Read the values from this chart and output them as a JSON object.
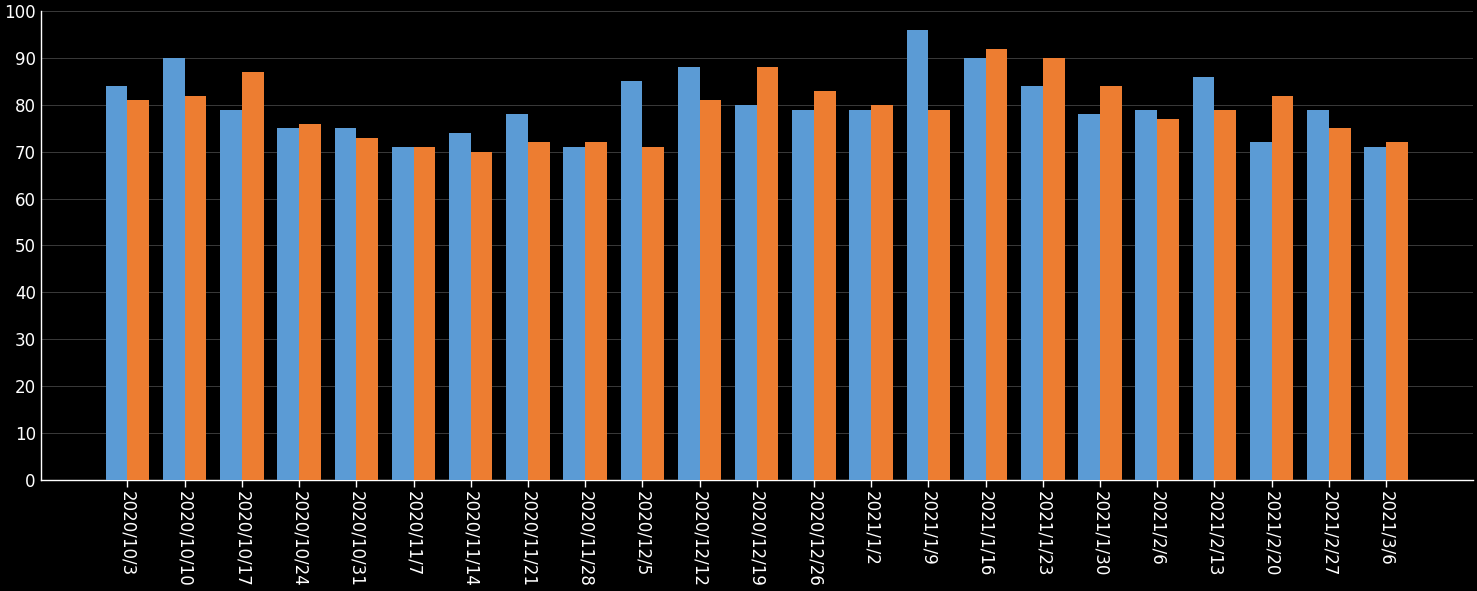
{
  "categories": [
    "2020/10/3",
    "2020/10/10",
    "2020/10/17",
    "2020/10/24",
    "2020/10/31",
    "2020/11/7",
    "2020/11/14",
    "2020/11/21",
    "2020/11/28",
    "2020/12/5",
    "2020/12/12",
    "2020/12/19",
    "2020/12/26",
    "2021/1/2",
    "2021/1/9",
    "2021/1/16",
    "2021/1/23",
    "2021/1/30",
    "2021/2/6",
    "2021/2/13",
    "2021/2/20",
    "2021/2/27",
    "2021/3/6"
  ],
  "blue_values": [
    84,
    90,
    79,
    75,
    75,
    71,
    74,
    78,
    71,
    85,
    88,
    80,
    79,
    79,
    96,
    90,
    84,
    78,
    79,
    86,
    72,
    79,
    71
  ],
  "orange_values": [
    81,
    82,
    87,
    76,
    73,
    71,
    70,
    72,
    72,
    71,
    81,
    88,
    83,
    80,
    79,
    92,
    90,
    84,
    77,
    79,
    82,
    75,
    72
  ],
  "blue_color": "#5B9BD5",
  "orange_color": "#ED7D31",
  "background_color": "#000000",
  "plot_bg_color": "#000000",
  "grid_color": "#3A3A3A",
  "text_color": "#FFFFFF",
  "ylim": [
    0,
    100
  ],
  "yticks": [
    0,
    10,
    20,
    30,
    40,
    50,
    60,
    70,
    80,
    90,
    100
  ],
  "bar_width": 0.38,
  "tick_fontsize": 12,
  "label_rotation": 270
}
